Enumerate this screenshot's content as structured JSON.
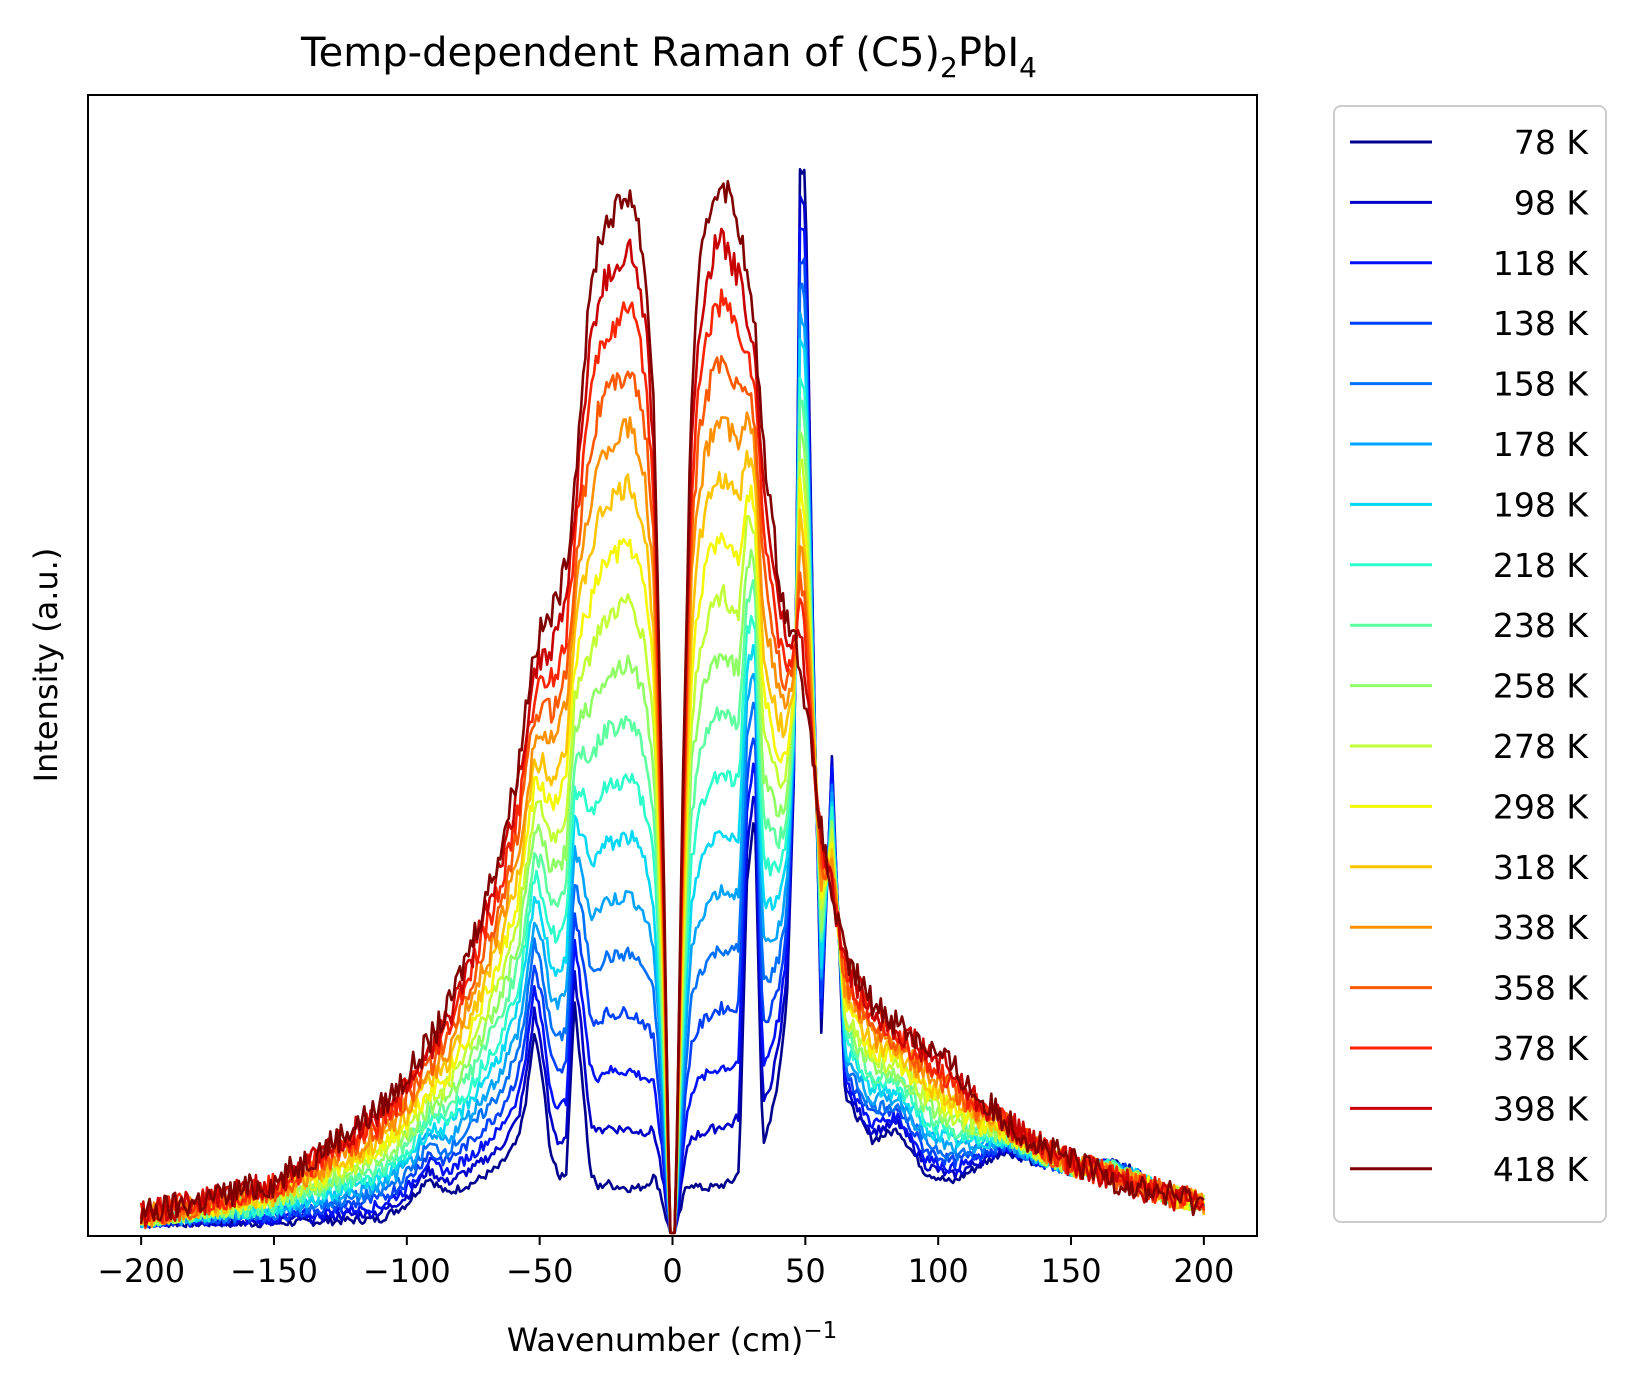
{
  "chart_data": {
    "type": "line",
    "title": "Temp-dependent Raman of (C5)2PbI4",
    "title_parts": {
      "main": "Temp-dependent Raman of (C5)",
      "sub1": "2",
      "mid": "PbI",
      "sub2": "4"
    },
    "xlabel": "Wavenumber (cm)−1",
    "xlabel_parts": {
      "main": "Wavenumber (cm)",
      "sup": "−1"
    },
    "ylabel": "Intensity (a.u.)",
    "xlim": [
      -220,
      220
    ],
    "ylim": [
      0,
      1.07
    ],
    "x_ticks": [
      -200,
      -150,
      -100,
      -50,
      0,
      50,
      100,
      150,
      200
    ],
    "x_tick_labels": [
      "−200",
      "−150",
      "−100",
      "−50",
      "0",
      "50",
      "100",
      "150",
      "200"
    ],
    "y_ticks_visible": false,
    "grid": false,
    "legend_position": "outside-right",
    "colormap": "jet",
    "series": [
      {
        "name": "78 K",
        "temperature": 78,
        "color": "#00008f"
      },
      {
        "name": "98 K",
        "temperature": 98,
        "color": "#0000c8"
      },
      {
        "name": "118 K",
        "temperature": 118,
        "color": "#0010ff"
      },
      {
        "name": "138 K",
        "temperature": 138,
        "color": "#0040ff"
      },
      {
        "name": "158 K",
        "temperature": 158,
        "color": "#0070ff"
      },
      {
        "name": "178 K",
        "temperature": 178,
        "color": "#00a4ff"
      },
      {
        "name": "198 K",
        "temperature": 198,
        "color": "#00d8f4"
      },
      {
        "name": "218 K",
        "temperature": 218,
        "color": "#2cffca"
      },
      {
        "name": "238 K",
        "temperature": 238,
        "color": "#5effa0"
      },
      {
        "name": "258 K",
        "temperature": 258,
        "color": "#90ff66"
      },
      {
        "name": "278 K",
        "temperature": 278,
        "color": "#c2ff36"
      },
      {
        "name": "298 K",
        "temperature": 298,
        "color": "#f4f802"
      },
      {
        "name": "318 K",
        "temperature": 318,
        "color": "#ffc400"
      },
      {
        "name": "338 K",
        "temperature": 338,
        "color": "#ff9000"
      },
      {
        "name": "358 K",
        "temperature": 358,
        "color": "#ff5800"
      },
      {
        "name": "378 K",
        "temperature": 378,
        "color": "#ff2400"
      },
      {
        "name": "398 K",
        "temperature": 398,
        "color": "#c80000"
      },
      {
        "name": "418 K",
        "temperature": 418,
        "color": "#800000"
      }
    ],
    "profile": {
      "x": [
        -200,
        -150,
        -130,
        -110,
        -100,
        -92,
        -85,
        -75,
        -65,
        -58,
        -55,
        -52,
        -49,
        -46,
        -43,
        -40,
        -37,
        -34,
        -31,
        -28,
        -25,
        -22,
        -19,
        -16,
        -13,
        -10,
        -7,
        -5,
        -3,
        -1.5,
        0,
        1.5,
        3,
        5,
        7,
        10,
        13,
        16,
        19,
        22,
        25,
        28,
        31,
        34,
        37,
        40,
        43,
        46,
        48,
        50,
        53,
        56,
        60,
        65,
        75,
        85,
        90,
        95,
        105,
        115,
        125,
        135,
        150,
        165,
        175,
        185,
        200
      ],
      "cold": [
        0.012,
        0.012,
        0.014,
        0.016,
        0.03,
        0.055,
        0.04,
        0.05,
        0.065,
        0.09,
        0.13,
        0.19,
        0.15,
        0.08,
        0.055,
        0.06,
        0.22,
        0.15,
        0.06,
        0.045,
        0.05,
        0.047,
        0.046,
        0.045,
        0.045,
        0.048,
        0.056,
        0.045,
        0.024,
        0.008,
        0.003,
        0.008,
        0.024,
        0.045,
        0.05,
        0.045,
        0.045,
        0.046,
        0.048,
        0.05,
        0.06,
        0.33,
        0.4,
        0.08,
        0.11,
        0.15,
        0.22,
        0.45,
        1.0,
        1.0,
        0.55,
        0.19,
        0.45,
        0.13,
        0.09,
        0.1,
        0.08,
        0.06,
        0.05,
        0.065,
        0.08,
        0.07,
        0.06,
        0.07,
        0.06,
        0.04,
        0.03
      ],
      "warm": [
        0.02,
        0.05,
        0.085,
        0.12,
        0.15,
        0.18,
        0.21,
        0.28,
        0.36,
        0.44,
        0.5,
        0.55,
        0.57,
        0.58,
        0.6,
        0.63,
        0.7,
        0.8,
        0.88,
        0.93,
        0.95,
        0.96,
        0.97,
        0.98,
        0.95,
        0.9,
        0.78,
        0.55,
        0.3,
        0.08,
        0.003,
        0.08,
        0.3,
        0.55,
        0.78,
        0.9,
        0.95,
        0.98,
        0.99,
        0.97,
        0.95,
        0.9,
        0.85,
        0.75,
        0.68,
        0.62,
        0.58,
        0.56,
        0.54,
        0.5,
        0.44,
        0.38,
        0.32,
        0.26,
        0.22,
        0.2,
        0.19,
        0.18,
        0.16,
        0.13,
        0.11,
        0.09,
        0.07,
        0.055,
        0.045,
        0.04,
        0.03
      ]
    }
  }
}
